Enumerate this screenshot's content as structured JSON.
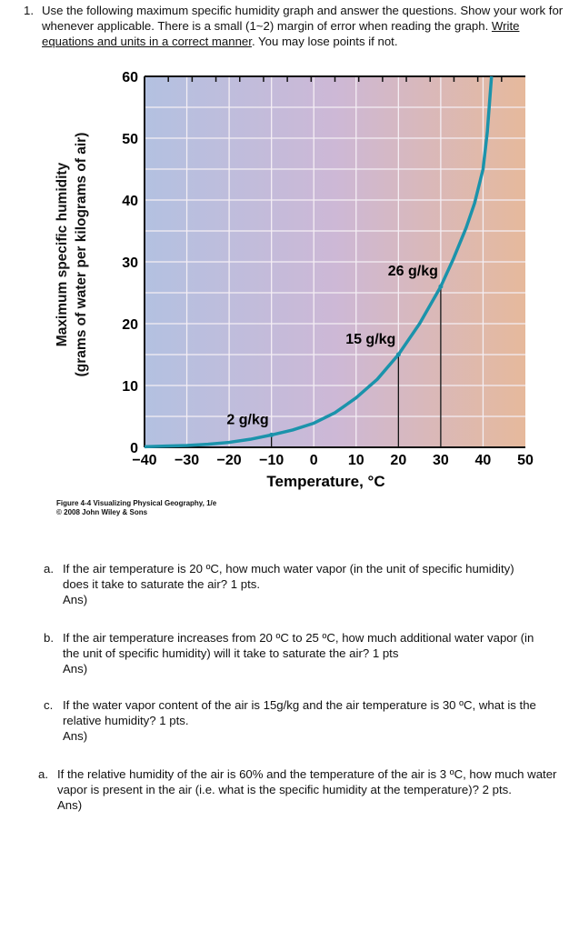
{
  "question": {
    "number": "1.",
    "text_before": "Use the following maximum specific humidity graph and answer the questions. Show your work for whenever applicable. There is a small (1~2) margin of error when reading the graph. ",
    "underlined": "Write equations and units in a correct manner",
    "text_after": ". You may lose points if not."
  },
  "chart_data": {
    "type": "line",
    "title": "",
    "xlabel": "Temperature, °C",
    "ylabel_line1": "Maximum specific humidity",
    "ylabel_line2": "(grams of water per kilograms of air)",
    "xlim": [
      -40,
      50
    ],
    "ylim": [
      0,
      60
    ],
    "xticks": [
      -40,
      -30,
      -20,
      -10,
      0,
      10,
      20,
      30,
      40,
      50
    ],
    "xtick_labels": [
      "−40",
      "−30",
      "−20",
      "−10",
      "0",
      "10",
      "20",
      "30",
      "40",
      "50"
    ],
    "yticks": [
      0,
      10,
      20,
      30,
      40,
      50,
      60
    ],
    "grid": true,
    "series": [
      {
        "x": [
          -40,
          -35,
          -30,
          -25,
          -20,
          -15,
          -10,
          -5,
          0,
          5,
          10,
          15,
          20,
          25,
          30,
          33,
          36,
          38,
          40,
          41,
          42
        ],
        "y": [
          0.1,
          0.2,
          0.3,
          0.5,
          0.8,
          1.3,
          2,
          2.8,
          3.9,
          5.6,
          8,
          11,
          15,
          20,
          26,
          30.5,
          35.5,
          39.5,
          45,
          51,
          60
        ]
      }
    ],
    "annotations": [
      {
        "text": "2 g/kg",
        "x": -10,
        "y": 2
      },
      {
        "text": "15 g/kg",
        "x": 20,
        "y": 15
      },
      {
        "text": "26 g/kg",
        "x": 30,
        "y": 26
      }
    ],
    "colors": {
      "curve": "#1b93ab",
      "bg_left": "#b3c1e1",
      "bg_mid": "#cdb8d6",
      "bg_right": "#e6b99c",
      "grid": "#f4eef4"
    }
  },
  "caption": {
    "line1": "Figure 4-4 Visualizing Physical Geography, 1/e",
    "line2": "© 2008 John Wiley & Sons"
  },
  "subquestions": [
    {
      "label": "a.",
      "text": "If the air temperature is 20 ºC, how much water vapor (in the unit of specific humidity) does it take to saturate the air? 1 pts.",
      "ans": "Ans)"
    },
    {
      "label": "b.",
      "text": "If the air temperature increases from 20 ºC to 25 ºC, how much additional water vapor (in the unit of specific humidity) will it take to saturate the air? 1 pts",
      "ans": "Ans)"
    },
    {
      "label": "c.",
      "text": "If the water vapor content of the air is 15g/kg and the air temperature is 30 ºC, what is the relative humidity? 1 pts.",
      "ans": "Ans)"
    },
    {
      "label": "a.",
      "text": "If the relative humidity of the air is 60% and the temperature of the air is 3 ºC, how much water vapor is present in the air (i.e. what is the specific humidity at the temperature)? 2 pts.",
      "ans": "Ans)"
    }
  ]
}
